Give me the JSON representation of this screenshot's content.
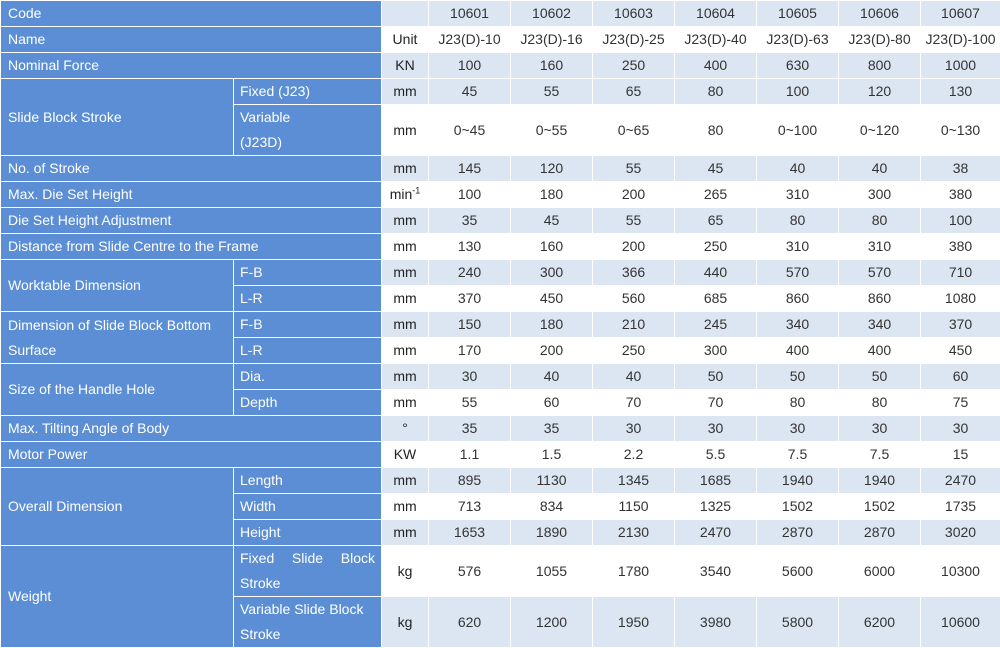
{
  "header": {
    "code_label": "Code",
    "codes": [
      "10601",
      "10602",
      "10603",
      "10604",
      "10605",
      "10606",
      "10607"
    ]
  },
  "name_row": {
    "label": "Name",
    "unit": "Unit",
    "models": [
      "J23(D)-10",
      "J23(D)-16",
      "J23(D)-25",
      "J23(D)-40",
      "J23(D)-63",
      "J23(D)-80",
      "J23(D)-100"
    ]
  },
  "rows": {
    "nominal_force": {
      "label": "Nominal Force",
      "unit": "KN",
      "values": [
        "100",
        "160",
        "250",
        "400",
        "630",
        "800",
        "1000"
      ]
    },
    "slide_block_stroke": {
      "label": "Slide Block Stroke",
      "fixed": {
        "label": "Fixed (J23)",
        "unit": "mm",
        "values": [
          "45",
          "55",
          "65",
          "80",
          "100",
          "120",
          "130"
        ]
      },
      "variable": {
        "label_line1": "Variable",
        "label_line2": "(J23D)",
        "unit": "mm",
        "values": [
          "0~45",
          "0~55",
          "0~65",
          "80",
          "0~100",
          "0~120",
          "0~130"
        ]
      }
    },
    "no_of_stroke": {
      "label": "No. of Stroke",
      "unit": "mm",
      "values": [
        "145",
        "120",
        "55",
        "45",
        "40",
        "40",
        "38"
      ]
    },
    "max_die_set_height": {
      "label": "Max. Die Set Height",
      "unit_base": "min",
      "unit_sup": "-1",
      "values": [
        "100",
        "180",
        "200",
        "265",
        "310",
        "300",
        "380"
      ]
    },
    "die_set_height_adjustment": {
      "label": "Die Set Height Adjustment",
      "unit": "mm",
      "values": [
        "35",
        "45",
        "55",
        "65",
        "80",
        "80",
        "100"
      ]
    },
    "distance_slide_centre": {
      "label": "Distance from Slide Centre to the Frame",
      "unit": "mm",
      "values": [
        "130",
        "160",
        "200",
        "250",
        "310",
        "310",
        "380"
      ]
    },
    "worktable_dimension": {
      "label": "Worktable Dimension",
      "fb": {
        "label": "F-B",
        "unit": "mm",
        "values": [
          "240",
          "300",
          "366",
          "440",
          "570",
          "570",
          "710"
        ]
      },
      "lr": {
        "label": "L-R",
        "unit": "mm",
        "values": [
          "370",
          "450",
          "560",
          "685",
          "860",
          "860",
          "1080"
        ]
      }
    },
    "slide_block_bottom": {
      "label_line1": "Dimension of Slide Block Bottom",
      "label_line2": "Surface",
      "fb": {
        "label": "F-B",
        "unit": "mm",
        "values": [
          "150",
          "180",
          "210",
          "245",
          "340",
          "340",
          "370"
        ]
      },
      "lr": {
        "label": "L-R",
        "unit": "mm",
        "values": [
          "170",
          "200",
          "250",
          "300",
          "400",
          "400",
          "450"
        ]
      }
    },
    "handle_hole": {
      "label": "Size of the Handle Hole",
      "dia": {
        "label": "Dia.",
        "unit": "mm",
        "values": [
          "30",
          "40",
          "40",
          "50",
          "50",
          "50",
          "60"
        ]
      },
      "depth": {
        "label": "Depth",
        "unit": "mm",
        "values": [
          "55",
          "60",
          "70",
          "70",
          "80",
          "80",
          "75"
        ]
      }
    },
    "max_tilting_angle": {
      "label": "Max. Tilting Angle of Body",
      "unit": "°",
      "values": [
        "35",
        "35",
        "30",
        "30",
        "30",
        "30",
        "30"
      ]
    },
    "motor_power": {
      "label": "Motor Power",
      "unit": "KW",
      "values": [
        "1.1",
        "1.5",
        "2.2",
        "5.5",
        "7.5",
        "7.5",
        "15"
      ]
    },
    "overall_dimension": {
      "label": "Overall Dimension",
      "length": {
        "label": "Length",
        "unit": "mm",
        "values": [
          "895",
          "1130",
          "1345",
          "1685",
          "1940",
          "1940",
          "2470"
        ]
      },
      "width": {
        "label": "Width",
        "unit": "mm",
        "values": [
          "713",
          "834",
          "1150",
          "1325",
          "1502",
          "1502",
          "1735"
        ]
      },
      "height": {
        "label": "Height",
        "unit": "mm",
        "values": [
          "1653",
          "1890",
          "2130",
          "2470",
          "2870",
          "2870",
          "3020"
        ]
      }
    },
    "weight": {
      "label": "Weight",
      "fixed": {
        "label_line1": "Fixed Slide Block",
        "label_line2": "Stroke",
        "unit": "kg",
        "values": [
          "576",
          "1055",
          "1780",
          "3540",
          "5600",
          "6000",
          "10300"
        ]
      },
      "variable": {
        "label_line1": "Variable Slide Block",
        "label_line2": "Stroke",
        "unit": "kg",
        "values": [
          "620",
          "1200",
          "1950",
          "3980",
          "5800",
          "6200",
          "10600"
        ]
      }
    }
  }
}
